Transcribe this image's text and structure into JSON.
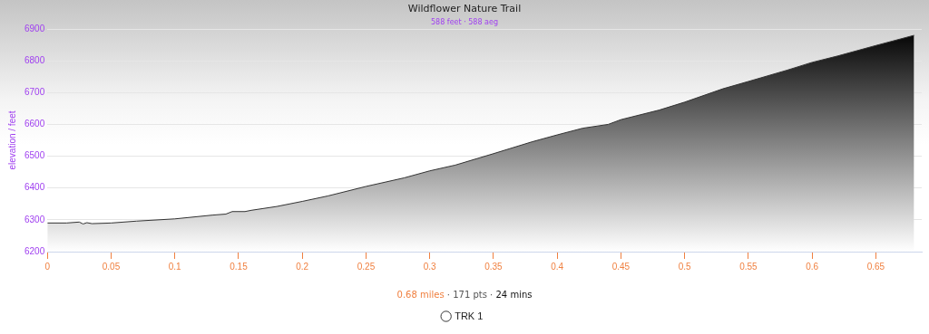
{
  "chart_data": {
    "type": "area",
    "title": "Wildflower Nature Trail",
    "subtitle": "588 feet · 588 aeg",
    "ylabel": "elevation / feet",
    "annotations": [
      "0.68 miles · 171 pts · 24 mins"
    ],
    "x": [
      0,
      0.015,
      0.025,
      0.028,
      0.031,
      0.035,
      0.05,
      0.07,
      0.1,
      0.13,
      0.14,
      0.145,
      0.155,
      0.16,
      0.18,
      0.2,
      0.22,
      0.25,
      0.28,
      0.3,
      0.32,
      0.35,
      0.38,
      0.4,
      0.42,
      0.44,
      0.45,
      0.48,
      0.5,
      0.53,
      0.55,
      0.58,
      0.6,
      0.62,
      0.65,
      0.68
    ],
    "series": [
      {
        "name": "TRK 1",
        "color": "#000000",
        "values": [
          6290,
          6290,
          6293,
          6287,
          6291,
          6288,
          6290,
          6296,
          6303,
          6315,
          6318,
          6326,
          6326,
          6330,
          6342,
          6358,
          6375,
          6405,
          6432,
          6454,
          6472,
          6508,
          6545,
          6567,
          6588,
          6600,
          6615,
          6645,
          6670,
          6712,
          6735,
          6770,
          6795,
          6815,
          6848,
          6880
        ]
      }
    ],
    "xlim": [
      0,
      0.686
    ],
    "xticks": [
      0,
      0.05,
      0.1,
      0.15,
      0.2,
      0.25,
      0.3,
      0.35,
      0.4,
      0.45,
      0.5,
      0.55,
      0.6,
      0.65
    ],
    "ylim": [
      6200,
      6900
    ],
    "yticks": [
      6200,
      6300,
      6400,
      6500,
      6600,
      6700,
      6800,
      6900
    ],
    "grid": "y",
    "legend": "bottom",
    "marker": "none"
  }
}
